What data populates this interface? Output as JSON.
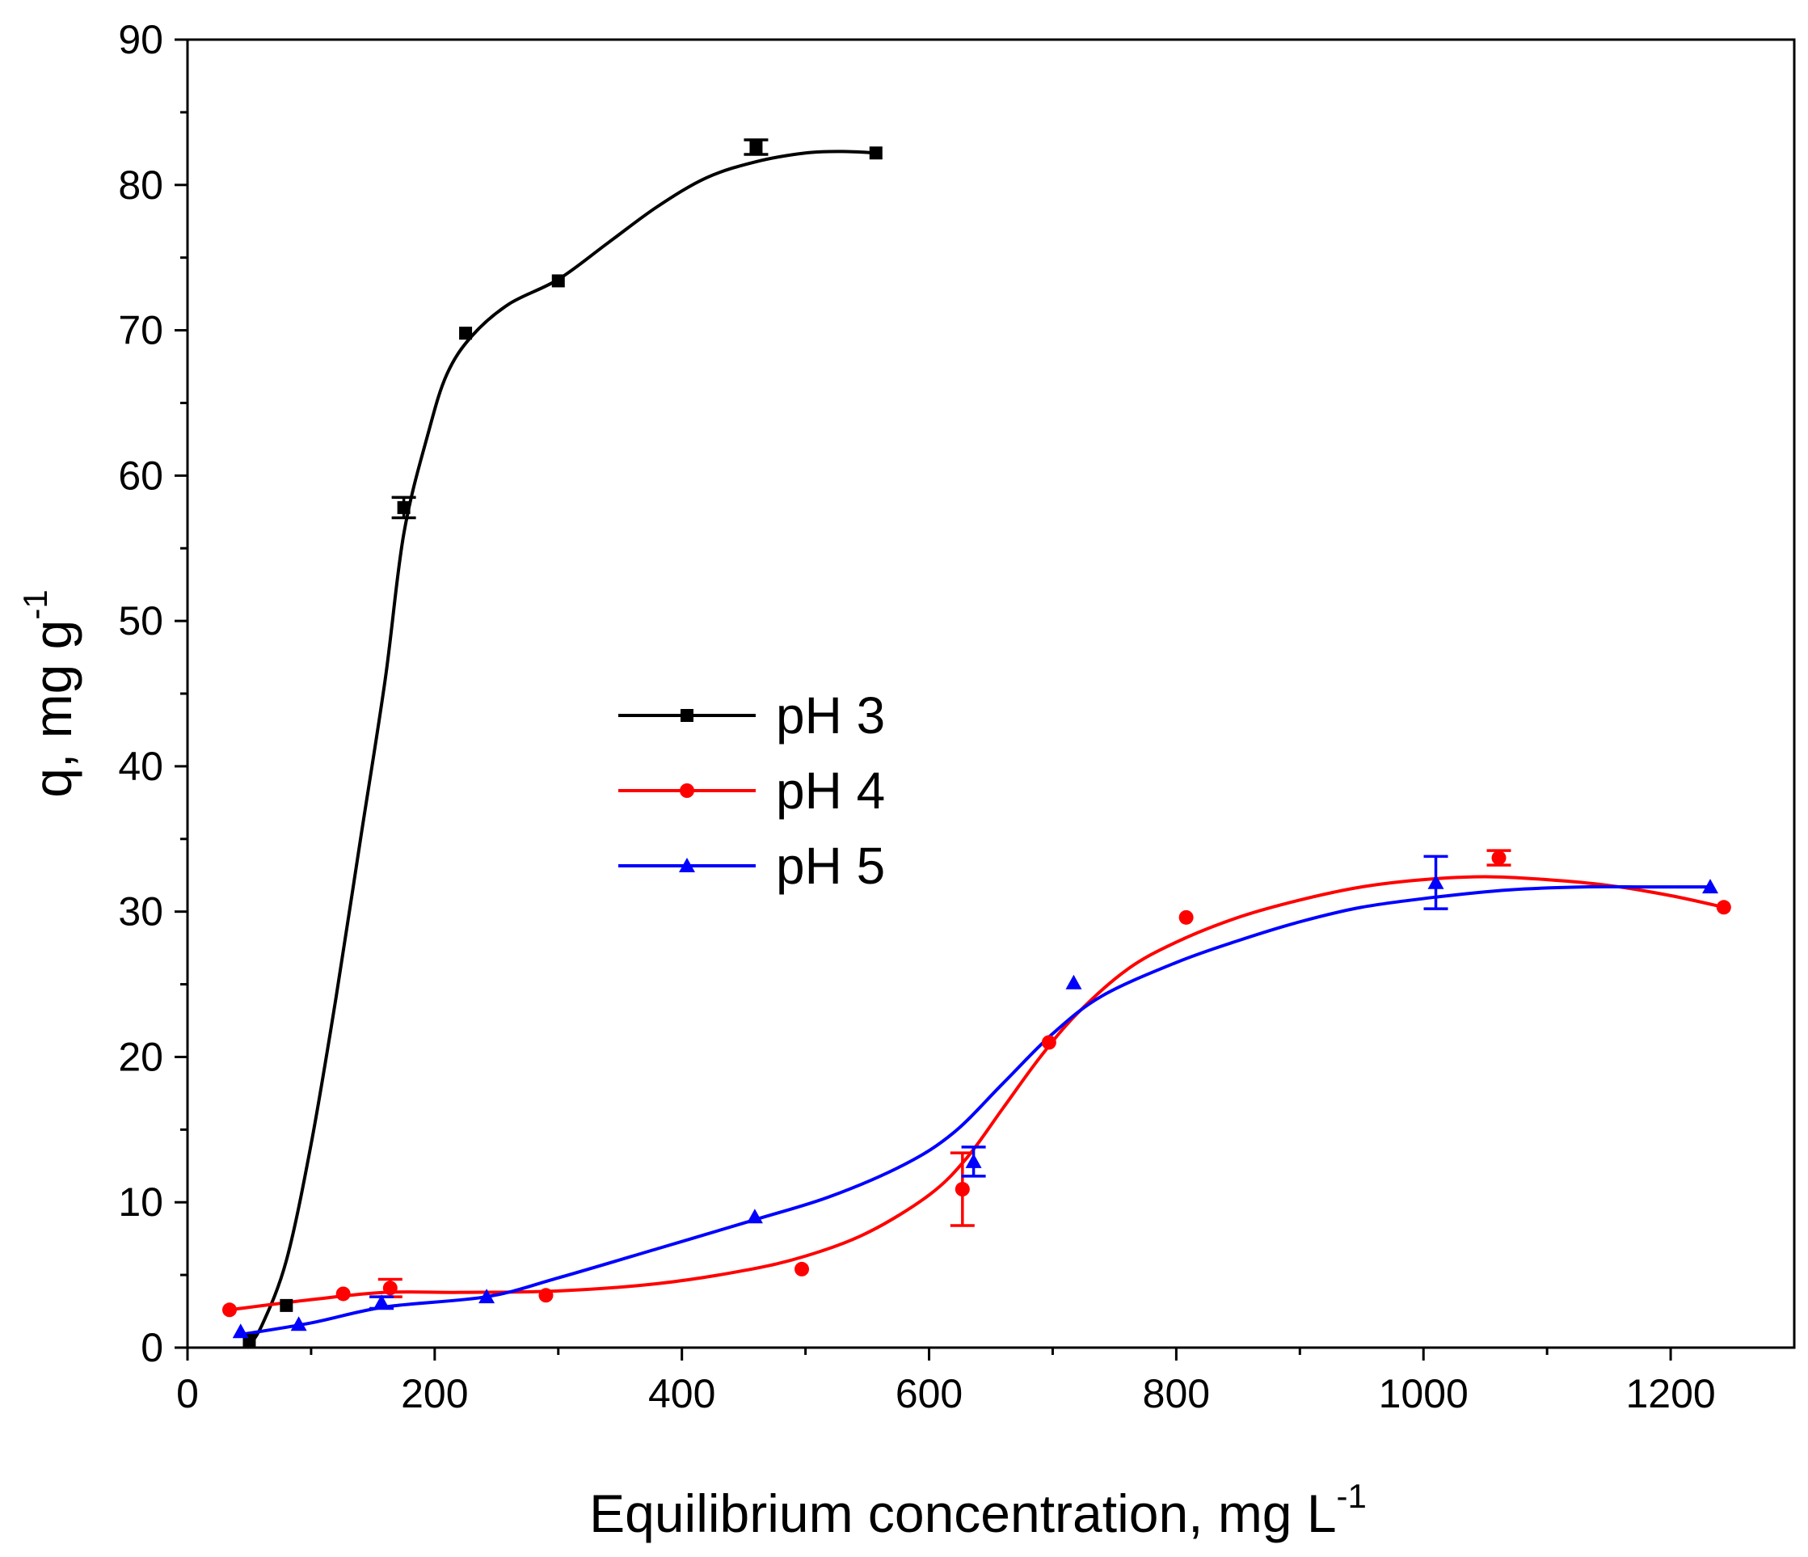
{
  "chart_data": {
    "type": "scatter",
    "title": "",
    "xlabel": "Equilibrium concentration, mg L",
    "xlabel_sup": "-1",
    "ylabel": "q, mg g",
    "ylabel_sup": "-1",
    "xlim": [
      0,
      1300
    ],
    "ylim": [
      0,
      90
    ],
    "xticks": [
      0,
      200,
      400,
      600,
      800,
      1000,
      1200
    ],
    "yticks": [
      0,
      10,
      20,
      30,
      40,
      50,
      60,
      70,
      80,
      90
    ],
    "grid": false,
    "legend_position": "center",
    "series": [
      {
        "name": "pH 3",
        "color": "#000000",
        "marker": "square",
        "points": [
          {
            "x": 50,
            "y": 0.5
          },
          {
            "x": 80,
            "y": 2.9
          },
          {
            "x": 175,
            "y": 57.8,
            "err": 0.7
          },
          {
            "x": 225,
            "y": 69.8
          },
          {
            "x": 300,
            "y": 73.4
          },
          {
            "x": 460,
            "y": 82.6,
            "err": 0.5
          },
          {
            "x": 557,
            "y": 82.2
          }
        ],
        "fit": [
          [
            48,
            0
          ],
          [
            60,
            1.5
          ],
          [
            80,
            6
          ],
          [
            100,
            14
          ],
          [
            120,
            24
          ],
          [
            140,
            35
          ],
          [
            160,
            46
          ],
          [
            175,
            56
          ],
          [
            195,
            63
          ],
          [
            210,
            67
          ],
          [
            230,
            69.6
          ],
          [
            260,
            71.8
          ],
          [
            300,
            73.5
          ],
          [
            340,
            76
          ],
          [
            380,
            78.5
          ],
          [
            420,
            80.5
          ],
          [
            460,
            81.6
          ],
          [
            500,
            82.2
          ],
          [
            530,
            82.3
          ],
          [
            557,
            82.2
          ]
        ]
      },
      {
        "name": "pH 4",
        "color": "#ff0000",
        "marker": "circle",
        "points": [
          {
            "x": 34,
            "y": 2.6
          },
          {
            "x": 126,
            "y": 3.7
          },
          {
            "x": 164,
            "y": 4.1,
            "err": 0.6
          },
          {
            "x": 290,
            "y": 3.6
          },
          {
            "x": 497,
            "y": 5.4
          },
          {
            "x": 627,
            "y": 10.9,
            "err": 2.5
          },
          {
            "x": 697,
            "y": 21.0
          },
          {
            "x": 808,
            "y": 29.6
          },
          {
            "x": 1061,
            "y": 33.7,
            "err": 0.5
          },
          {
            "x": 1243,
            "y": 30.3
          }
        ],
        "fit": [
          [
            34,
            2.6
          ],
          [
            100,
            3.3
          ],
          [
            160,
            3.8
          ],
          [
            220,
            3.8
          ],
          [
            300,
            3.9
          ],
          [
            380,
            4.4
          ],
          [
            450,
            5.3
          ],
          [
            500,
            6.3
          ],
          [
            550,
            7.9
          ],
          [
            600,
            10.5
          ],
          [
            630,
            13.0
          ],
          [
            660,
            16.5
          ],
          [
            690,
            20.0
          ],
          [
            720,
            23.0
          ],
          [
            760,
            26.0
          ],
          [
            800,
            27.9
          ],
          [
            850,
            29.6
          ],
          [
            900,
            30.8
          ],
          [
            950,
            31.7
          ],
          [
            1000,
            32.2
          ],
          [
            1050,
            32.4
          ],
          [
            1100,
            32.2
          ],
          [
            1150,
            31.8
          ],
          [
            1200,
            31.1
          ],
          [
            1243,
            30.3
          ]
        ]
      },
      {
        "name": "pH 5",
        "color": "#0000ff",
        "marker": "triangle",
        "points": [
          {
            "x": 43,
            "y": 1.1
          },
          {
            "x": 90,
            "y": 1.6
          },
          {
            "x": 157,
            "y": 3.1,
            "err": 0.4
          },
          {
            "x": 242,
            "y": 3.5
          },
          {
            "x": 459,
            "y": 9.0
          },
          {
            "x": 636,
            "y": 12.8,
            "err": 1.0
          },
          {
            "x": 717,
            "y": 25.1
          },
          {
            "x": 1010,
            "y": 32.0,
            "err": 1.8
          },
          {
            "x": 1232,
            "y": 31.7
          }
        ],
        "fit": [
          [
            43,
            0.9
          ],
          [
            100,
            1.7
          ],
          [
            160,
            2.8
          ],
          [
            242,
            3.5
          ],
          [
            300,
            4.8
          ],
          [
            380,
            6.8
          ],
          [
            459,
            8.8
          ],
          [
            520,
            10.4
          ],
          [
            580,
            12.6
          ],
          [
            620,
            14.8
          ],
          [
            660,
            18.2
          ],
          [
            700,
            21.6
          ],
          [
            740,
            24.2
          ],
          [
            800,
            26.5
          ],
          [
            850,
            28.0
          ],
          [
            900,
            29.3
          ],
          [
            950,
            30.3
          ],
          [
            1010,
            31.0
          ],
          [
            1070,
            31.5
          ],
          [
            1130,
            31.7
          ],
          [
            1180,
            31.7
          ],
          [
            1232,
            31.7
          ]
        ]
      }
    ]
  }
}
